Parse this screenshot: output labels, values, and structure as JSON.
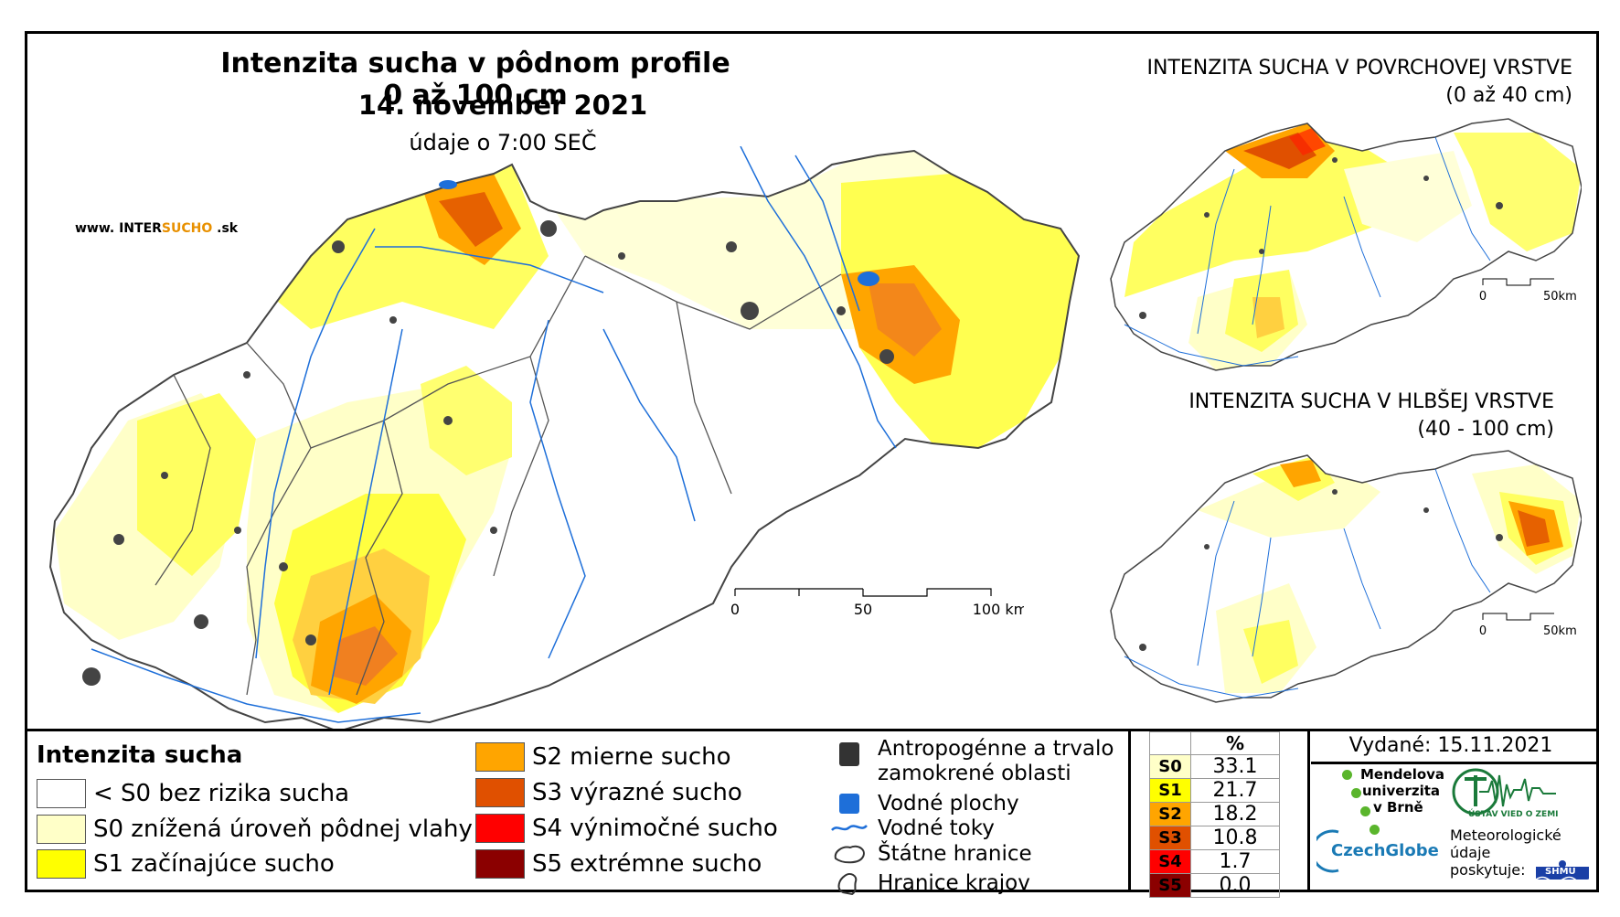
{
  "header": {
    "title": "Intenzita sucha v pôdnom profile 0 až 100 cm",
    "date": "14. november 2021",
    "subtitle": "údaje o 7:00 SEČ",
    "url_prefix": "www. INTER",
    "url_accent": "SUCHO",
    "url_suffix": " .sk"
  },
  "main_map": {
    "scalebar": {
      "ticks": [
        "0",
        "50",
        "100 km"
      ]
    }
  },
  "inset_surface": {
    "title_line1": "INTENZITA SUCHA V POVRCHOVEJ VRSTVE",
    "title_line2": "(0 až 40 cm)",
    "scalebar": {
      "ticks": [
        "0",
        "50km"
      ]
    }
  },
  "inset_deep": {
    "title_line1": "INTENZITA SUCHA V HLBŠEJ VRSTVE",
    "title_line2": "(40 - 100 cm)",
    "scalebar": {
      "ticks": [
        "0",
        "50km"
      ]
    }
  },
  "legend": {
    "title": "Intenzita sucha",
    "classes": [
      {
        "label": "< S0 bez rizika sucha",
        "color": "#ffffff"
      },
      {
        "label": "S0 znížená úroveň pôdnej vlahy",
        "color": "#ffffc8"
      },
      {
        "label": "S1 začínajúce sucho",
        "color": "#ffff00"
      },
      {
        "label": "S2 mierne sucho",
        "color": "#ffa500"
      },
      {
        "label": "S3 výrazné sucho",
        "color": "#e05000"
      },
      {
        "label": "S4 výnimočné sucho",
        "color": "#ff0000"
      },
      {
        "label": "S5 extrémne sucho",
        "color": "#8b0000"
      }
    ],
    "symbols": [
      {
        "label_line1": "Antropogénne a trvalo",
        "label_line2": "zamokrené oblasti",
        "icon": "dark-area-icon"
      },
      {
        "label_line1": "Vodné plochy",
        "icon": "water-area-icon"
      },
      {
        "label_line1": "Vodné toky",
        "icon": "river-line-icon"
      },
      {
        "label_line1": "Štátne hranice",
        "icon": "state-border-icon"
      },
      {
        "label_line1": "Hranice krajov",
        "icon": "region-border-icon"
      }
    ]
  },
  "percent_table": {
    "header": "%",
    "rows": [
      {
        "class": "S0",
        "value": "33.1",
        "color": "#ffffc8"
      },
      {
        "class": "S1",
        "value": "21.7",
        "color": "#ffff00"
      },
      {
        "class": "S2",
        "value": "18.2",
        "color": "#ffa500"
      },
      {
        "class": "S3",
        "value": "10.8",
        "color": "#e05000"
      },
      {
        "class": "S4",
        "value": "1.7",
        "color": "#ff0000"
      },
      {
        "class": "S5",
        "value": "0.0",
        "color": "#8b0000"
      }
    ]
  },
  "credits": {
    "issued": "Vydané: 15.11.2021",
    "mendel_line1": "Mendelova",
    "mendel_line2": "univerzita",
    "mendel_line3": "v Brně",
    "czechglobe": "CzechGlobe",
    "institute": "ÚSTAV VIED O ZEMI",
    "meteo_line1": "Meteorologické",
    "meteo_line2": "údaje",
    "meteo_line3": "poskytuje:",
    "shmu": "SHMÚ"
  }
}
